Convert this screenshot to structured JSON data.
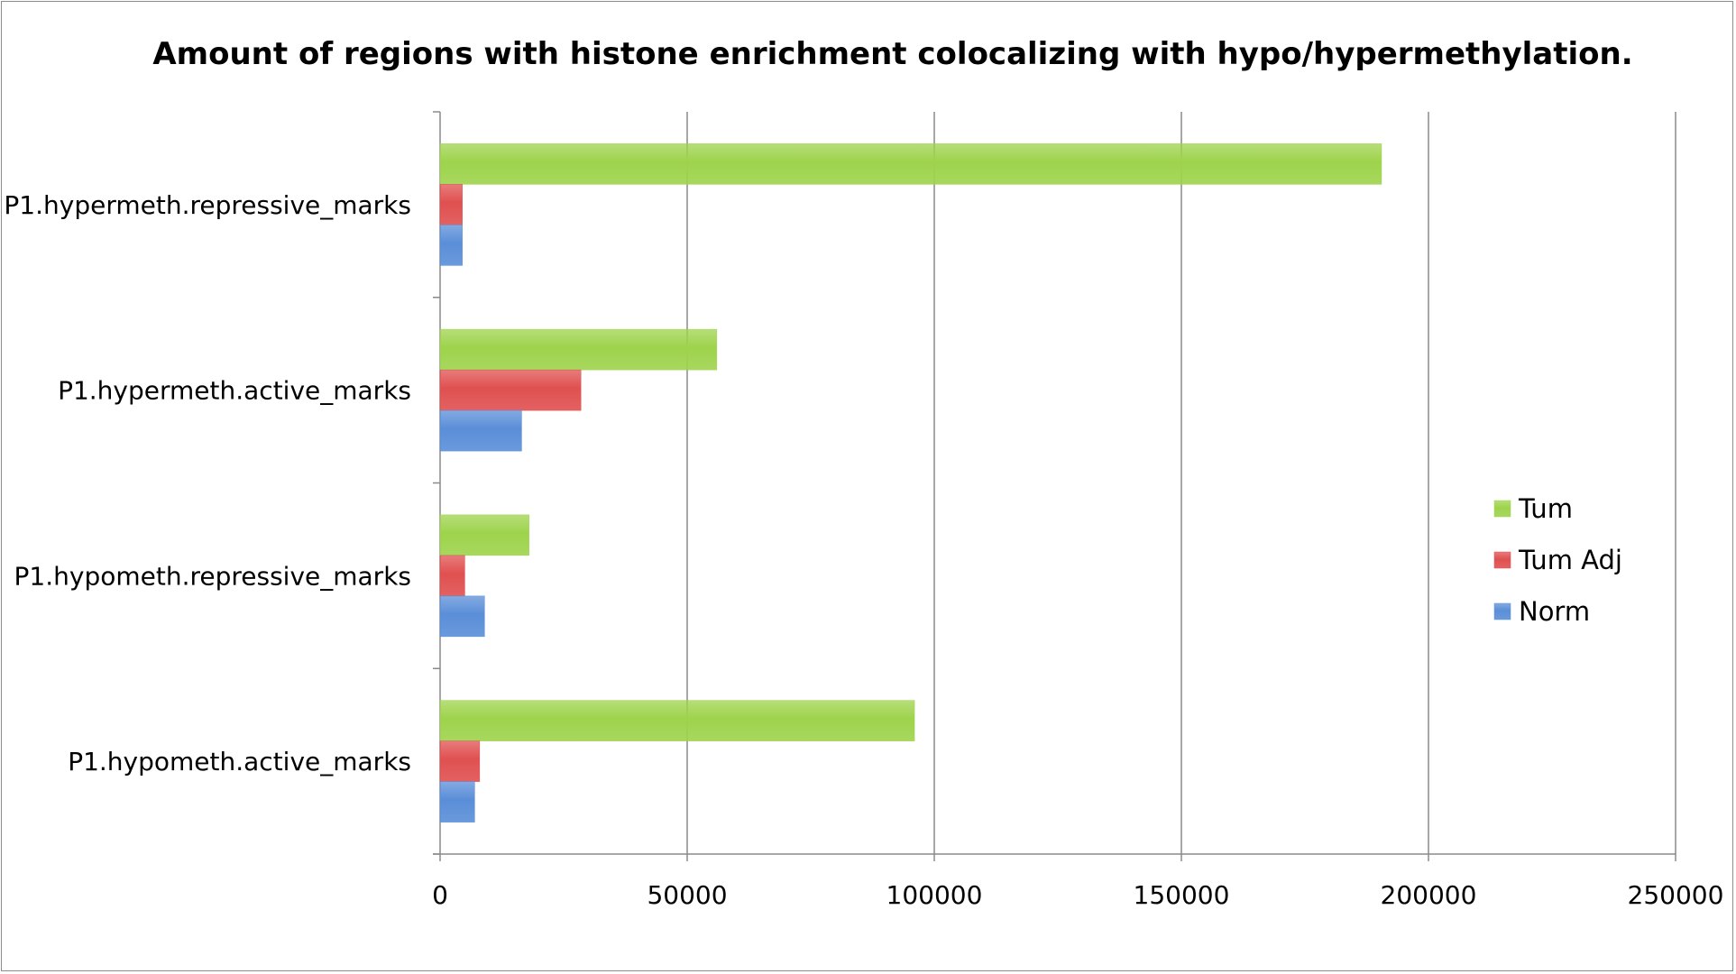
{
  "chart_data": {
    "type": "bar",
    "orientation": "horizontal",
    "title": "Amount of regions with histone enrichment colocalizing with hypo/hypermethylation.",
    "categories": [
      "P1.hypermeth.repressive_marks",
      "P1.hypermeth.active_marks",
      "P1.hypometh.repressive_marks",
      "P1.hypometh.active_marks"
    ],
    "series": [
      {
        "name": "Tum",
        "color": "#9ed34c",
        "values": [
          190500,
          56000,
          18000,
          96000
        ]
      },
      {
        "name": "Tum Adj",
        "color": "#e05050",
        "values": [
          4500,
          28500,
          5000,
          8000
        ]
      },
      {
        "name": "Norm",
        "color": "#5a8ed8",
        "values": [
          4500,
          16500,
          9000,
          7000
        ]
      }
    ],
    "xlim": [
      0,
      250000
    ],
    "xticks": [
      0,
      50000,
      100000,
      150000,
      200000,
      250000
    ],
    "xtick_labels": [
      "0",
      "50000",
      "100000",
      "150000",
      "200000",
      "250000"
    ],
    "grid": "vertical major gridlines",
    "legend_position": "right"
  }
}
